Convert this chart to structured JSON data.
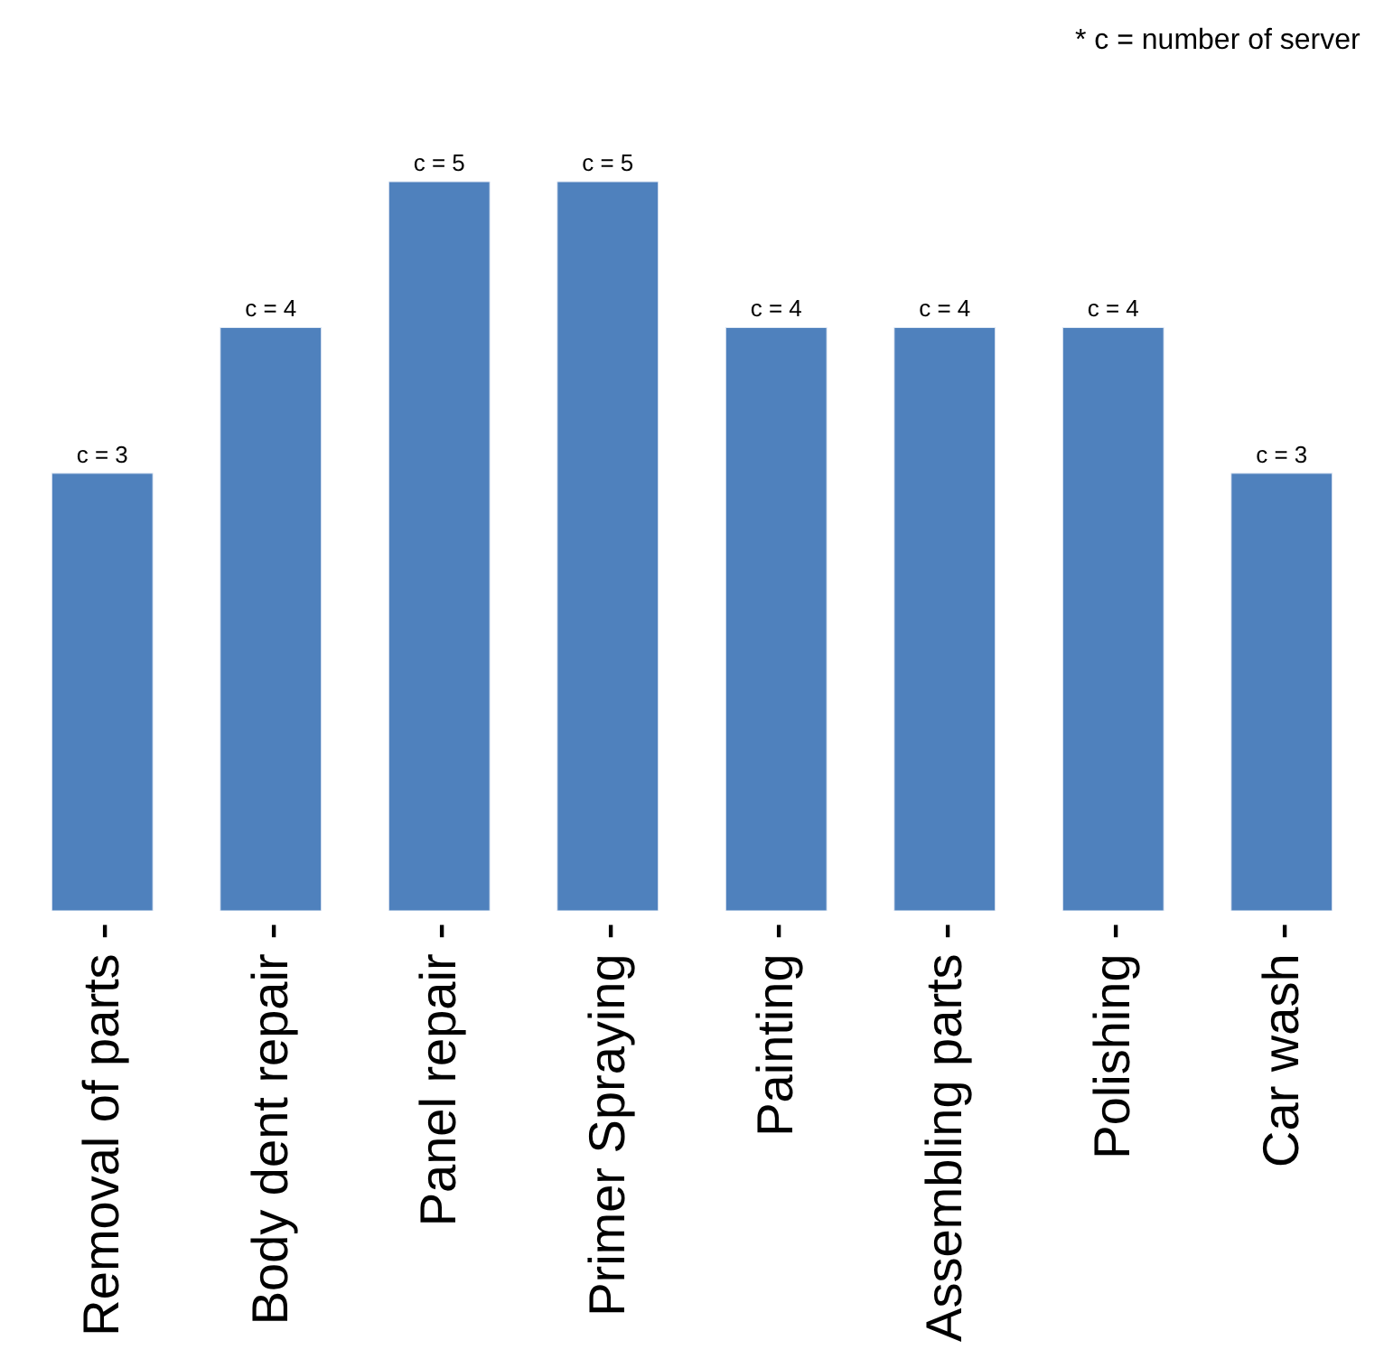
{
  "chart_data": {
    "type": "bar",
    "categories": [
      "Removal of parts -",
      "Body dent repair -",
      "Panel repair -",
      "Primer Spraying -",
      "Painting -",
      "Assembling parts -",
      "Polishing -",
      "Car wash -"
    ],
    "values": [
      3,
      4,
      5,
      5,
      4,
      4,
      4,
      3
    ],
    "value_labels": [
      "c = 3",
      "c = 4",
      "c = 5",
      "c = 5",
      "c = 4",
      "c = 4",
      "c = 4",
      "c = 3"
    ],
    "color": "#4f81bd",
    "annotations": [
      "* c = number of server"
    ]
  }
}
